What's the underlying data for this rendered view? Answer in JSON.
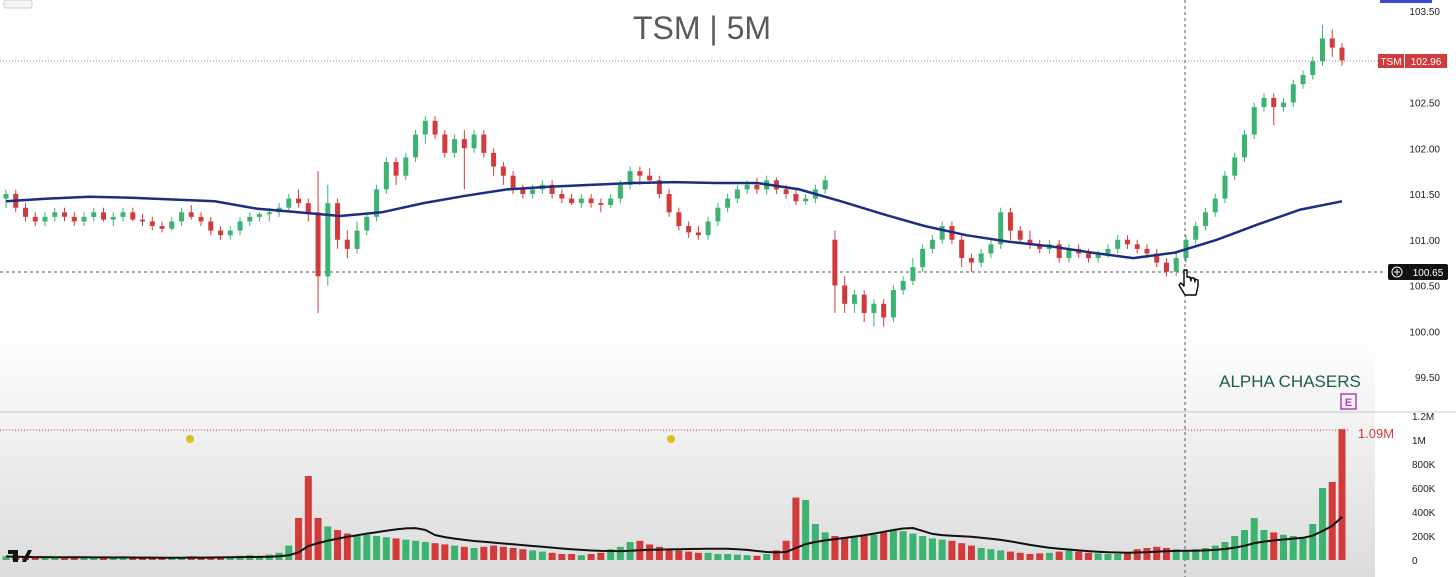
{
  "title": "TSM | 5M",
  "brand": "ALPHA CHASERS",
  "earnings_marker": "E",
  "ticker_tag": {
    "label": "TSM",
    "price": "102.96"
  },
  "crosshair_price": "100.65",
  "volume_peak_label": "1.09M",
  "colors": {
    "up": "#3cb371",
    "down": "#d23b3b",
    "ma": "#1c2f7f",
    "volume_ma": "#111111",
    "brand": "#1d5e44",
    "earnings": "#b23cc8",
    "background": "#ffffff"
  },
  "chart_data": [
    {
      "type": "candlestick",
      "title": "TSM | 5M",
      "price_axis_ticks": [
        "103.50",
        "103.00",
        "102.50",
        "102.00",
        "101.50",
        "101.00",
        "100.50",
        "100.00",
        "99.50"
      ],
      "ylim": [
        99.5,
        103.5
      ],
      "last_price": 102.96,
      "crosshair_price": 100.65,
      "moving_average": [
        101.42,
        101.45,
        101.47,
        101.46,
        101.44,
        101.42,
        101.34,
        101.3,
        101.26,
        101.3,
        101.4,
        101.48,
        101.55,
        101.58,
        101.6,
        101.62,
        101.63,
        101.62,
        101.62,
        101.55,
        101.42,
        101.28,
        101.15,
        101.05,
        100.98,
        100.93,
        100.86,
        100.8,
        100.86,
        101.0,
        101.17,
        101.33,
        101.42
      ],
      "candles": [
        [
          101.45,
          101.55,
          101.35,
          101.5
        ],
        [
          101.5,
          101.55,
          101.3,
          101.35
        ],
        [
          101.35,
          101.4,
          101.2,
          101.25
        ],
        [
          101.25,
          101.3,
          101.15,
          101.2
        ],
        [
          101.2,
          101.3,
          101.15,
          101.25
        ],
        [
          101.25,
          101.35,
          101.2,
          101.3
        ],
        [
          101.3,
          101.35,
          101.2,
          101.25
        ],
        [
          101.25,
          101.3,
          101.15,
          101.2
        ],
        [
          101.2,
          101.3,
          101.15,
          101.25
        ],
        [
          101.25,
          101.35,
          101.2,
          101.3
        ],
        [
          101.3,
          101.35,
          101.2,
          101.22
        ],
        [
          101.22,
          101.3,
          101.15,
          101.25
        ],
        [
          101.25,
          101.35,
          101.2,
          101.3
        ],
        [
          101.3,
          101.35,
          101.2,
          101.22
        ],
        [
          101.22,
          101.28,
          101.15,
          101.2
        ],
        [
          101.2,
          101.25,
          101.1,
          101.15
        ],
        [
          101.15,
          101.2,
          101.08,
          101.12
        ],
        [
          101.12,
          101.25,
          101.1,
          101.2
        ],
        [
          101.2,
          101.35,
          101.15,
          101.3
        ],
        [
          101.3,
          101.38,
          101.22,
          101.25
        ],
        [
          101.25,
          101.3,
          101.15,
          101.2
        ],
        [
          101.2,
          101.25,
          101.05,
          101.1
        ],
        [
          101.1,
          101.15,
          101.0,
          101.05
        ],
        [
          101.05,
          101.15,
          101.0,
          101.1
        ],
        [
          101.1,
          101.25,
          101.05,
          101.2
        ],
        [
          101.2,
          101.3,
          101.15,
          101.25
        ],
        [
          101.25,
          101.3,
          101.2,
          101.28
        ],
        [
          101.28,
          101.35,
          101.2,
          101.3
        ],
        [
          101.3,
          101.4,
          101.25,
          101.35
        ],
        [
          101.35,
          101.5,
          101.3,
          101.45
        ],
        [
          101.45,
          101.55,
          101.35,
          101.4
        ],
        [
          101.4,
          101.45,
          101.2,
          101.3
        ],
        [
          101.3,
          101.75,
          100.2,
          100.6
        ],
        [
          100.6,
          101.6,
          100.5,
          101.4
        ],
        [
          101.4,
          101.45,
          100.9,
          101.0
        ],
        [
          101.0,
          101.1,
          100.8,
          100.9
        ],
        [
          100.9,
          101.2,
          100.85,
          101.1
        ],
        [
          101.1,
          101.3,
          101.05,
          101.25
        ],
        [
          101.25,
          101.6,
          101.2,
          101.55
        ],
        [
          101.55,
          101.9,
          101.5,
          101.85
        ],
        [
          101.85,
          101.9,
          101.6,
          101.7
        ],
        [
          101.7,
          101.95,
          101.65,
          101.9
        ],
        [
          101.9,
          102.2,
          101.85,
          102.15
        ],
        [
          102.15,
          102.35,
          102.05,
          102.3
        ],
        [
          102.3,
          102.35,
          102.1,
          102.15
        ],
        [
          102.15,
          102.2,
          101.9,
          101.95
        ],
        [
          101.95,
          102.15,
          101.9,
          102.1
        ],
        [
          102.1,
          102.2,
          101.55,
          102.0
        ],
        [
          102.0,
          102.2,
          101.95,
          102.15
        ],
        [
          102.15,
          102.2,
          101.9,
          101.95
        ],
        [
          101.95,
          102.0,
          101.7,
          101.8
        ],
        [
          101.8,
          101.85,
          101.6,
          101.7
        ],
        [
          101.7,
          101.75,
          101.5,
          101.55
        ],
        [
          101.55,
          101.6,
          101.45,
          101.5
        ],
        [
          101.5,
          101.6,
          101.45,
          101.55
        ],
        [
          101.55,
          101.65,
          101.5,
          101.6
        ],
        [
          101.6,
          101.65,
          101.45,
          101.5
        ],
        [
          101.5,
          101.55,
          101.4,
          101.45
        ],
        [
          101.45,
          101.5,
          101.38,
          101.4
        ],
        [
          101.4,
          101.5,
          101.35,
          101.45
        ],
        [
          101.45,
          101.5,
          101.35,
          101.4
        ],
        [
          101.4,
          101.45,
          101.3,
          101.38
        ],
        [
          101.38,
          101.5,
          101.35,
          101.45
        ],
        [
          101.45,
          101.65,
          101.4,
          101.6
        ],
        [
          101.6,
          101.8,
          101.55,
          101.75
        ],
        [
          101.75,
          101.8,
          101.6,
          101.7
        ],
        [
          101.7,
          101.78,
          101.62,
          101.65
        ],
        [
          101.65,
          101.7,
          101.45,
          101.5
        ],
        [
          101.5,
          101.55,
          101.25,
          101.3
        ],
        [
          101.3,
          101.35,
          101.1,
          101.15
        ],
        [
          101.15,
          101.2,
          101.02,
          101.08
        ],
        [
          101.08,
          101.15,
          101.0,
          101.05
        ],
        [
          101.05,
          101.25,
          101.0,
          101.2
        ],
        [
          101.2,
          101.4,
          101.15,
          101.35
        ],
        [
          101.35,
          101.5,
          101.3,
          101.45
        ],
        [
          101.45,
          101.6,
          101.4,
          101.55
        ],
        [
          101.55,
          101.65,
          101.5,
          101.6
        ],
        [
          101.6,
          101.68,
          101.5,
          101.55
        ],
        [
          101.55,
          101.7,
          101.5,
          101.65
        ],
        [
          101.65,
          101.68,
          101.5,
          101.55
        ],
        [
          101.55,
          101.6,
          101.45,
          101.5
        ],
        [
          101.5,
          101.55,
          101.38,
          101.42
        ],
        [
          101.42,
          101.5,
          101.38,
          101.45
        ],
        [
          101.45,
          101.6,
          101.4,
          101.55
        ],
        [
          101.55,
          101.7,
          101.5,
          101.65
        ],
        [
          101.0,
          101.1,
          100.2,
          100.5
        ],
        [
          100.5,
          100.6,
          100.2,
          100.3
        ],
        [
          100.3,
          100.45,
          100.2,
          100.4
        ],
        [
          100.4,
          100.45,
          100.1,
          100.2
        ],
        [
          100.2,
          100.35,
          100.05,
          100.3
        ],
        [
          100.3,
          100.35,
          100.05,
          100.15
        ],
        [
          100.15,
          100.5,
          100.1,
          100.45
        ],
        [
          100.45,
          100.6,
          100.4,
          100.55
        ],
        [
          100.55,
          100.8,
          100.5,
          100.7
        ],
        [
          100.7,
          100.95,
          100.65,
          100.9
        ],
        [
          100.9,
          101.05,
          100.85,
          101.0
        ],
        [
          101.0,
          101.2,
          100.95,
          101.15
        ],
        [
          101.15,
          101.2,
          100.95,
          101.0
        ],
        [
          101.0,
          101.05,
          100.7,
          100.8
        ],
        [
          100.8,
          100.85,
          100.65,
          100.75
        ],
        [
          100.75,
          100.9,
          100.7,
          100.85
        ],
        [
          100.85,
          101.0,
          100.8,
          100.95
        ],
        [
          100.95,
          101.35,
          100.9,
          101.3
        ],
        [
          101.3,
          101.35,
          101.0,
          101.1
        ],
        [
          101.1,
          101.15,
          100.95,
          101.0
        ],
        [
          101.0,
          101.1,
          100.9,
          100.95
        ],
        [
          100.95,
          101.0,
          100.85,
          100.9
        ],
        [
          100.9,
          101.0,
          100.85,
          100.95
        ],
        [
          100.95,
          101.0,
          100.75,
          100.8
        ],
        [
          100.8,
          100.95,
          100.75,
          100.9
        ],
        [
          100.9,
          100.95,
          100.8,
          100.85
        ],
        [
          100.85,
          100.9,
          100.75,
          100.8
        ],
        [
          100.8,
          100.88,
          100.75,
          100.85
        ],
        [
          100.85,
          100.95,
          100.8,
          100.9
        ],
        [
          100.9,
          101.05,
          100.85,
          101.0
        ],
        [
          101.0,
          101.05,
          100.9,
          100.95
        ],
        [
          100.95,
          101.0,
          100.85,
          100.9
        ],
        [
          100.9,
          100.95,
          100.8,
          100.85
        ],
        [
          100.85,
          100.9,
          100.7,
          100.75
        ],
        [
          100.75,
          100.8,
          100.6,
          100.65
        ],
        [
          100.65,
          100.85,
          100.6,
          100.8
        ],
        [
          100.8,
          101.05,
          100.75,
          101.0
        ],
        [
          101.0,
          101.2,
          100.95,
          101.15
        ],
        [
          101.15,
          101.35,
          101.1,
          101.3
        ],
        [
          101.3,
          101.5,
          101.25,
          101.45
        ],
        [
          101.45,
          101.75,
          101.4,
          101.7
        ],
        [
          101.7,
          101.95,
          101.65,
          101.9
        ],
        [
          101.9,
          102.2,
          101.85,
          102.15
        ],
        [
          102.15,
          102.5,
          102.1,
          102.45
        ],
        [
          102.45,
          102.6,
          102.4,
          102.55
        ],
        [
          102.55,
          102.6,
          102.25,
          102.45
        ],
        [
          102.45,
          102.55,
          102.4,
          102.5
        ],
        [
          102.5,
          102.75,
          102.45,
          102.7
        ],
        [
          102.7,
          102.85,
          102.65,
          102.8
        ],
        [
          102.8,
          103.0,
          102.75,
          102.95
        ],
        [
          102.95,
          103.35,
          102.9,
          103.2
        ],
        [
          103.2,
          103.3,
          103.0,
          103.1
        ],
        [
          103.1,
          103.15,
          102.9,
          102.96
        ]
      ]
    },
    {
      "type": "bar",
      "title": "Volume",
      "volume_axis_ticks": [
        "1.2M",
        "1M",
        "800K",
        "600K",
        "400K",
        "200K",
        "0"
      ],
      "ylim": [
        0,
        1200000
      ],
      "peak_label": "1.09M",
      "values": [
        30000,
        25000,
        22000,
        20000,
        25000,
        20000,
        18000,
        22000,
        20000,
        18000,
        15000,
        20000,
        25000,
        20000,
        18000,
        15000,
        18000,
        20000,
        25000,
        30000,
        20000,
        25000,
        28000,
        30000,
        35000,
        40000,
        30000,
        45000,
        60000,
        120000,
        350000,
        700000,
        350000,
        280000,
        250000,
        220000,
        200000,
        210000,
        200000,
        190000,
        180000,
        170000,
        160000,
        150000,
        140000,
        130000,
        120000,
        110000,
        100000,
        110000,
        120000,
        110000,
        100000,
        90000,
        80000,
        70000,
        60000,
        50000,
        50000,
        40000,
        50000,
        60000,
        90000,
        110000,
        150000,
        160000,
        130000,
        110000,
        90000,
        80000,
        70000,
        60000,
        60000,
        50000,
        50000,
        45000,
        40000,
        35000,
        50000,
        80000,
        160000,
        520000,
        500000,
        300000,
        230000,
        200000,
        180000,
        190000,
        200000,
        210000,
        230000,
        250000,
        240000,
        220000,
        200000,
        180000,
        170000,
        160000,
        140000,
        120000,
        100000,
        90000,
        80000,
        70000,
        60000,
        50000,
        55000,
        60000,
        70000,
        80000,
        70000,
        60000,
        55000,
        50000,
        50000,
        60000,
        90000,
        100000,
        110000,
        100000,
        90000,
        80000,
        90000,
        100000,
        120000,
        150000,
        200000,
        250000,
        350000,
        250000,
        230000,
        210000,
        200000,
        180000,
        300000,
        600000,
        650000,
        1090000
      ]
    }
  ]
}
